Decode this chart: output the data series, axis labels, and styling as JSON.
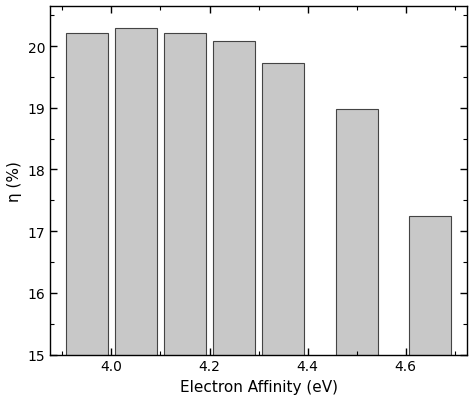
{
  "x_positions": [
    3.95,
    4.05,
    4.15,
    4.25,
    4.35,
    4.5,
    4.65
  ],
  "bar_heights": [
    20.21,
    20.3,
    20.21,
    20.09,
    19.72,
    18.98,
    17.25
  ],
  "bar_width": 0.085,
  "bar_color": "#c8c8c8",
  "bar_edgecolor": "#444444",
  "bar_linewidth": 0.8,
  "xlabel": "Electron Affinity (eV)",
  "ylabel": "η (%)",
  "xlim": [
    3.875,
    4.725
  ],
  "ylim": [
    15,
    20.65
  ],
  "xticks": [
    4.0,
    4.2,
    4.4,
    4.6
  ],
  "yticks": [
    15,
    16,
    17,
    18,
    19,
    20
  ],
  "xlabel_fontsize": 11,
  "ylabel_fontsize": 11,
  "tick_fontsize": 10,
  "tick_direction": "in"
}
